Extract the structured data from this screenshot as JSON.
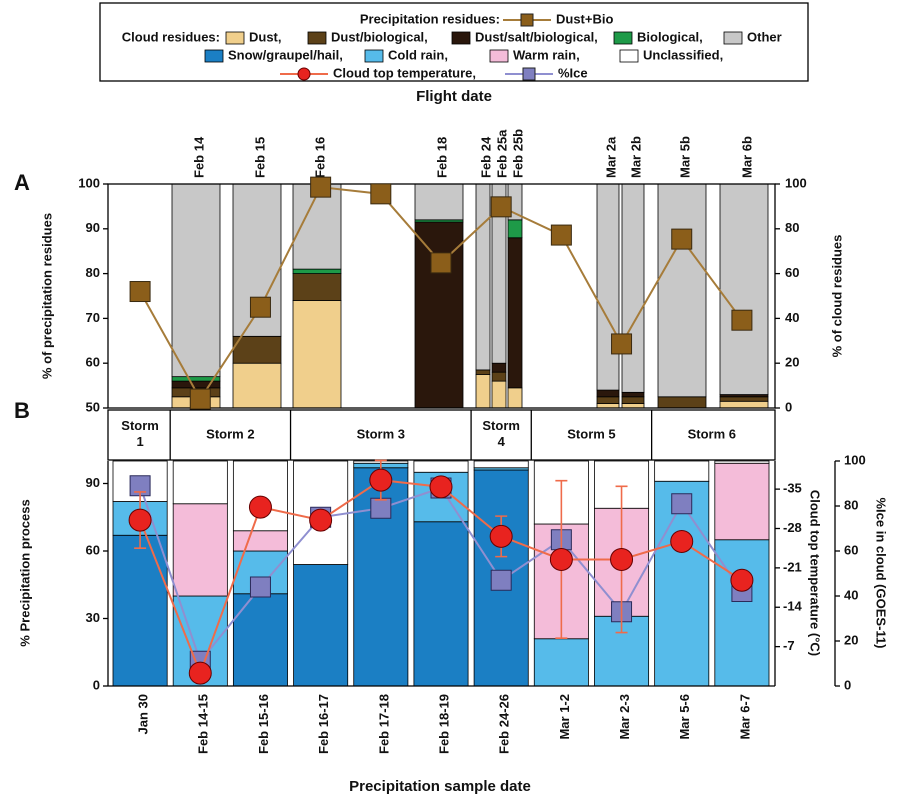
{
  "chart_data": [
    {
      "type": "stacked_bar",
      "panel": "A",
      "x_title": "Flight date",
      "y_title": "% of precipitation residues",
      "y2_title": "% of cloud residues",
      "legend_group": "Cloud residues:",
      "categories": [
        "Feb 14",
        "Feb 15",
        "Feb 16",
        "Feb 18",
        "Feb 24",
        "Feb 25a",
        "Feb 25b",
        "Mar 2a",
        "Mar 2b",
        "Mar 5b",
        "Mar 6b"
      ],
      "series": [
        {
          "name": "Dust,",
          "color": "#f0cf8c",
          "axis": "y2",
          "values": [
            5,
            20,
            48,
            0,
            15,
            12,
            9,
            2,
            2,
            0,
            3
          ]
        },
        {
          "name": "Dust/biological,",
          "color": "#5c4118",
          "axis": "y2",
          "values": [
            4,
            12,
            12,
            0,
            2,
            4,
            0,
            3,
            3,
            5,
            2
          ]
        },
        {
          "name": "Dust/salt/biological,",
          "color": "#2a170c",
          "axis": "y2",
          "values": [
            3,
            0,
            0,
            83,
            0,
            4,
            67,
            3,
            2,
            0,
            1
          ]
        },
        {
          "name": "Biological,",
          "color": "#1e9a48",
          "axis": "y2",
          "values": [
            2,
            0,
            2,
            1,
            0,
            0,
            8,
            0,
            0,
            0,
            0
          ]
        },
        {
          "name": "Other",
          "color": "#c8c8c8",
          "axis": "y2",
          "values": [
            86,
            68,
            38,
            16,
            83,
            80,
            16,
            92,
            93,
            95,
            94
          ]
        }
      ],
      "line": {
        "legend_group": "Precipitation residues:",
        "name": "Dust+Bio",
        "color": "#a67c3a",
        "marker_color": "#8b5e1a",
        "values": [
          76,
          52,
          72.5,
          99.3,
          97.8,
          82.4,
          94.9,
          88.6,
          64.3,
          87.7,
          69.6
        ]
      },
      "ylim": [
        50,
        100
      ],
      "yticks": [
        50,
        60,
        70,
        80,
        90,
        100
      ],
      "y2lim": [
        0,
        100
      ],
      "y2ticks": [
        0,
        20,
        40,
        60,
        80,
        100
      ]
    },
    {
      "type": "stacked_bar",
      "panel": "B",
      "x_title": "Precipitation sample date",
      "y_title": "% Precipitation process",
      "y2_title": "Cloud top temperature (°C)",
      "y3_title": "%Ice in cloud (GOES-11)",
      "storms": [
        "Storm 1",
        "Storm 2",
        "Storm 3",
        "Storm 4",
        "Storm 5",
        "Storm 6"
      ],
      "categories": [
        "Jan 30",
        "Feb 14-15",
        "Feb 15-16",
        "Feb 16-17",
        "Feb 17-18",
        "Feb 18-19",
        "Feb 24-26",
        "Mar 1-2",
        "Mar 2-3",
        "Mar 5-6",
        "Mar 6-7"
      ],
      "series": [
        {
          "name": "Snow/graupel/hail,",
          "color": "#1b7fc4",
          "values": [
            67,
            0,
            41,
            54,
            97,
            73,
            96,
            0,
            0,
            0,
            0
          ]
        },
        {
          "name": "Cold rain,",
          "color": "#56bbea",
          "values": [
            15,
            40,
            19,
            0,
            2,
            22,
            1,
            21,
            31,
            91,
            65
          ]
        },
        {
          "name": "Warm rain,",
          "color": "#f4bcd9",
          "values": [
            0,
            41,
            9,
            0,
            0,
            0,
            0,
            51,
            48,
            0,
            34
          ]
        },
        {
          "name": "Unclassified,",
          "color": "#ffffff",
          "values": [
            18,
            19,
            31,
            46,
            1,
            5,
            3,
            28,
            21,
            9,
            1
          ]
        }
      ],
      "line_series": [
        {
          "name": "%Ice",
          "color": "#8f8fd0",
          "marker_color": "#7f7fc0",
          "axis": "y3",
          "values": [
            89,
            11,
            44,
            75,
            79,
            88,
            47,
            65,
            33,
            81,
            42
          ]
        },
        {
          "name": "Cloud top temperature,",
          "color": "#ef6b4a",
          "marker_color": "#e8231f",
          "axis": "y2",
          "values": [
            -29.5,
            -2.3,
            -31.8,
            -29.5,
            -36.6,
            -35.4,
            -26.6,
            -22.5,
            -22.5,
            -25.7,
            -18.8
          ],
          "errors": [
            5,
            0,
            0,
            0,
            3.5,
            0,
            3.6,
            14,
            13,
            0,
            1
          ]
        }
      ],
      "ylim": [
        0,
        100
      ],
      "yticks": [
        0,
        30,
        60,
        90
      ],
      "y2lim": [
        0,
        -40
      ],
      "y2ticks": [
        -35,
        -28,
        -21,
        -14,
        -7
      ],
      "y3lim": [
        0,
        100
      ],
      "y3ticks": [
        0,
        20,
        40,
        60,
        80,
        100
      ]
    }
  ]
}
